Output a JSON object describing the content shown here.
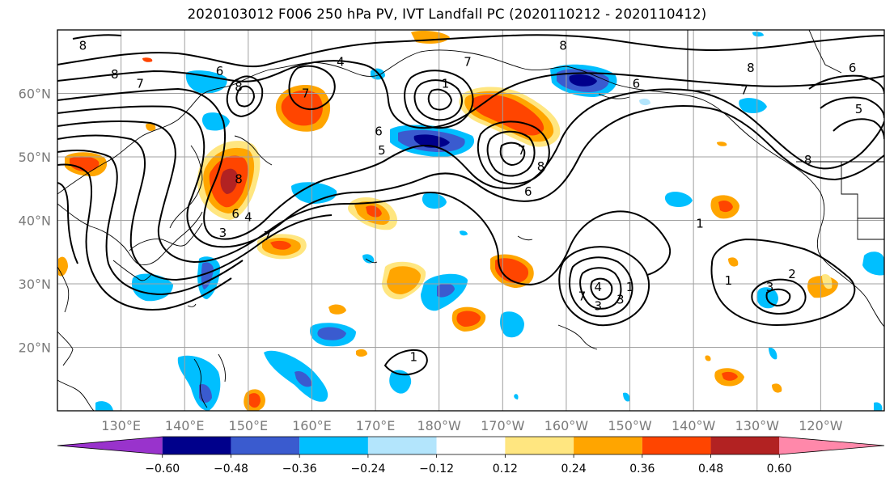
{
  "title": "2020103012 F006 250 hPa PV, IVT Landfall PC (2020110212 - 2020110412)",
  "map": {
    "lat_range": [
      10,
      70
    ],
    "lon_range": [
      120,
      250
    ],
    "lat_ticks": [
      {
        "value": 20,
        "label": "20°N"
      },
      {
        "value": 30,
        "label": "30°N"
      },
      {
        "value": 40,
        "label": "40°N"
      },
      {
        "value": 50,
        "label": "50°N"
      },
      {
        "value": 60,
        "label": "60°N"
      }
    ],
    "lon_ticks": [
      {
        "value": 130,
        "label": "130°E"
      },
      {
        "value": 140,
        "label": "140°E"
      },
      {
        "value": 150,
        "label": "150°E"
      },
      {
        "value": 160,
        "label": "160°E"
      },
      {
        "value": 170,
        "label": "170°E"
      },
      {
        "value": 180,
        "label": "180°W"
      },
      {
        "value": 190,
        "label": "170°W"
      },
      {
        "value": 200,
        "label": "160°W"
      },
      {
        "value": 210,
        "label": "150°W"
      },
      {
        "value": 220,
        "label": "140°W"
      },
      {
        "value": 230,
        "label": "130°W"
      },
      {
        "value": 240,
        "label": "120°W"
      }
    ],
    "grid": true,
    "contour_labels": [
      {
        "text": "8",
        "lon": 124,
        "lat": 67.5
      },
      {
        "text": "8",
        "lon": 129,
        "lat": 63
      },
      {
        "text": "7",
        "lon": 133,
        "lat": 61.5
      },
      {
        "text": "6",
        "lon": 145.5,
        "lat": 63.5
      },
      {
        "text": "8",
        "lon": 148.5,
        "lat": 61
      },
      {
        "text": "4",
        "lon": 164.5,
        "lat": 65
      },
      {
        "text": "7",
        "lon": 159,
        "lat": 60
      },
      {
        "text": "1",
        "lon": 181,
        "lat": 61.5
      },
      {
        "text": "8",
        "lon": 199.5,
        "lat": 67.5
      },
      {
        "text": "7",
        "lon": 184.5,
        "lat": 65
      },
      {
        "text": "6",
        "lon": 211,
        "lat": 61.5
      },
      {
        "text": "8",
        "lon": 229,
        "lat": 64
      },
      {
        "text": "7",
        "lon": 228,
        "lat": 60.5
      },
      {
        "text": "6",
        "lon": 245,
        "lat": 64
      },
      {
        "text": "5",
        "lon": 246,
        "lat": 57.5
      },
      {
        "text": "8",
        "lon": 238,
        "lat": 49.5
      },
      {
        "text": "6",
        "lon": 170.5,
        "lat": 54
      },
      {
        "text": "5",
        "lon": 171,
        "lat": 51
      },
      {
        "text": "8",
        "lon": 196,
        "lat": 48.5
      },
      {
        "text": "6",
        "lon": 194,
        "lat": 44.5
      },
      {
        "text": "7",
        "lon": 193,
        "lat": 51
      },
      {
        "text": "8",
        "lon": 148.5,
        "lat": 46.5
      },
      {
        "text": "4",
        "lon": 150,
        "lat": 40.5
      },
      {
        "text": "6",
        "lon": 148,
        "lat": 41
      },
      {
        "text": "3",
        "lon": 146,
        "lat": 38
      },
      {
        "text": "7",
        "lon": 153,
        "lat": 37.5
      },
      {
        "text": "1",
        "lon": 221,
        "lat": 39.5
      },
      {
        "text": "1",
        "lon": 210,
        "lat": 29.5
      },
      {
        "text": "4",
        "lon": 205,
        "lat": 29.5
      },
      {
        "text": "3",
        "lon": 208.5,
        "lat": 27.5
      },
      {
        "text": "3",
        "lon": 205,
        "lat": 26.5
      },
      {
        "text": "7",
        "lon": 202.5,
        "lat": 28
      },
      {
        "text": "1",
        "lon": 225.5,
        "lat": 30.5
      },
      {
        "text": "2",
        "lon": 235.5,
        "lat": 31.5
      },
      {
        "text": "3",
        "lon": 232,
        "lat": 29.5
      },
      {
        "text": "1",
        "lon": 176,
        "lat": 18.5
      }
    ]
  },
  "colorbar": {
    "labels": [
      "−0.60",
      "−0.48",
      "−0.36",
      "−0.24",
      "−0.12",
      "0.12",
      "0.24",
      "0.36",
      "0.48",
      "0.60"
    ],
    "colors": [
      "#9933cc",
      "#00008b",
      "#3a5bcf",
      "#00bfff",
      "#b3e5fc",
      "#ffffff",
      "#ffe680",
      "#ffa500",
      "#ff4500",
      "#b22222",
      "#ff88aa"
    ]
  }
}
